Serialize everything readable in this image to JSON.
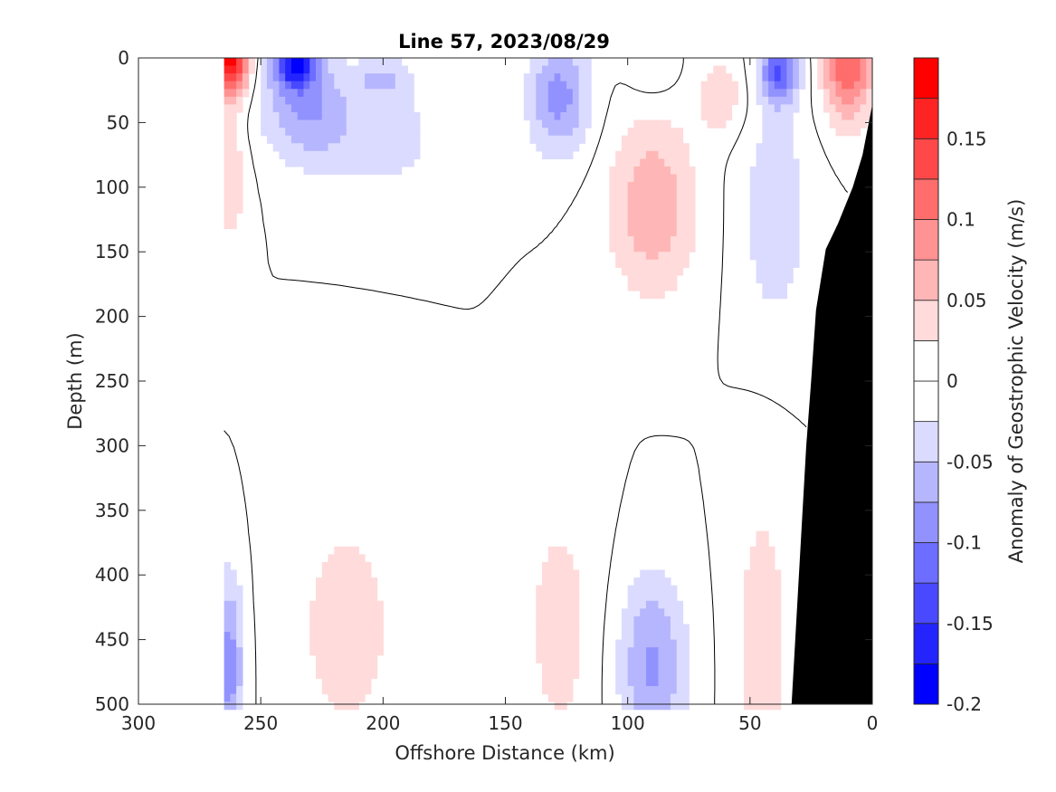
{
  "chart_data": {
    "type": "contourf",
    "title": "Line 57, 2023/08/29",
    "xlabel": "Offshore Distance (km)",
    "ylabel": "Depth (m)",
    "xlim": [
      300,
      0
    ],
    "ylim": [
      500,
      0
    ],
    "x_reversed": true,
    "y_reversed": true,
    "x_ticks": [
      300,
      250,
      200,
      150,
      100,
      50,
      0
    ],
    "y_ticks": [
      0,
      50,
      100,
      150,
      200,
      250,
      300,
      350,
      400,
      450,
      500
    ],
    "grid": false,
    "colorbar": {
      "label": "Anomaly of Geostrophic Velocity (m/s)",
      "range": [
        -0.2,
        0.2
      ],
      "level_step": 0.025,
      "tick_values": [
        0.15,
        0.1,
        0.05,
        0,
        -0.05,
        -0.1,
        -0.15,
        -0.2
      ],
      "tick_labels": [
        "0.15",
        "0.1",
        "0.05",
        "0",
        "-0.05",
        "-0.1",
        "-0.15",
        "-0.2"
      ],
      "colormap": "blue-white-red",
      "color_min": "#0000ff",
      "color_max": "#ff0000"
    },
    "zero_contour_color": "#000000",
    "bathymetry_color": "#000000",
    "bathymetry": {
      "x": [
        33,
        30,
        27,
        25,
        23,
        19,
        14,
        8,
        4,
        0
      ],
      "depth": [
        500,
        400,
        300,
        250,
        195,
        148,
        128,
        100,
        75,
        36
      ]
    },
    "section_start_km": 265,
    "features": [
      {
        "sign": 1,
        "x": 262,
        "z": 0,
        "amp": 0.19,
        "sx": 7,
        "sz": 30
      },
      {
        "sign": 1,
        "x": 263,
        "z": 90,
        "amp": 0.05,
        "sx": 7,
        "sz": 50
      },
      {
        "sign": -1,
        "x": 236,
        "z": 5,
        "amp": 0.16,
        "sx": 9,
        "sz": 18
      },
      {
        "sign": -1,
        "x": 232,
        "z": 40,
        "amp": 0.07,
        "sx": 18,
        "sz": 40
      },
      {
        "sign": -1,
        "x": 200,
        "z": 60,
        "amp": 0.035,
        "sx": 28,
        "sz": 50
      },
      {
        "sign": -1,
        "x": 200,
        "z": 15,
        "amp": 0.04,
        "sx": 12,
        "sz": 15
      },
      {
        "sign": -1,
        "x": 128,
        "z": 30,
        "amp": 0.085,
        "sx": 13,
        "sz": 45
      },
      {
        "sign": -1,
        "x": 90,
        "z": 10,
        "amp": 0.03,
        "sx": 10,
        "sz": 20
      },
      {
        "sign": 1,
        "x": 90,
        "z": 115,
        "amp": 0.07,
        "sx": 18,
        "sz": 70
      },
      {
        "sign": 1,
        "x": 62,
        "z": 30,
        "amp": 0.045,
        "sx": 10,
        "sz": 30
      },
      {
        "sign": -1,
        "x": 38,
        "z": 10,
        "amp": 0.12,
        "sx": 8,
        "sz": 25
      },
      {
        "sign": -1,
        "x": 40,
        "z": 120,
        "amp": 0.045,
        "sx": 14,
        "sz": 90
      },
      {
        "sign": 1,
        "x": 10,
        "z": 10,
        "amp": 0.12,
        "sx": 10,
        "sz": 40
      },
      {
        "sign": -1,
        "x": 263,
        "z": 470,
        "amp": 0.09,
        "sx": 6,
        "sz": 70
      },
      {
        "sign": 1,
        "x": 215,
        "z": 440,
        "amp": 0.035,
        "sx": 25,
        "sz": 110
      },
      {
        "sign": 1,
        "x": 128,
        "z": 440,
        "amp": 0.035,
        "sx": 16,
        "sz": 110
      },
      {
        "sign": -1,
        "x": 90,
        "z": 470,
        "amp": 0.08,
        "sx": 14,
        "sz": 70
      },
      {
        "sign": 1,
        "x": 45,
        "z": 450,
        "amp": 0.04,
        "sx": 12,
        "sz": 120
      }
    ]
  }
}
